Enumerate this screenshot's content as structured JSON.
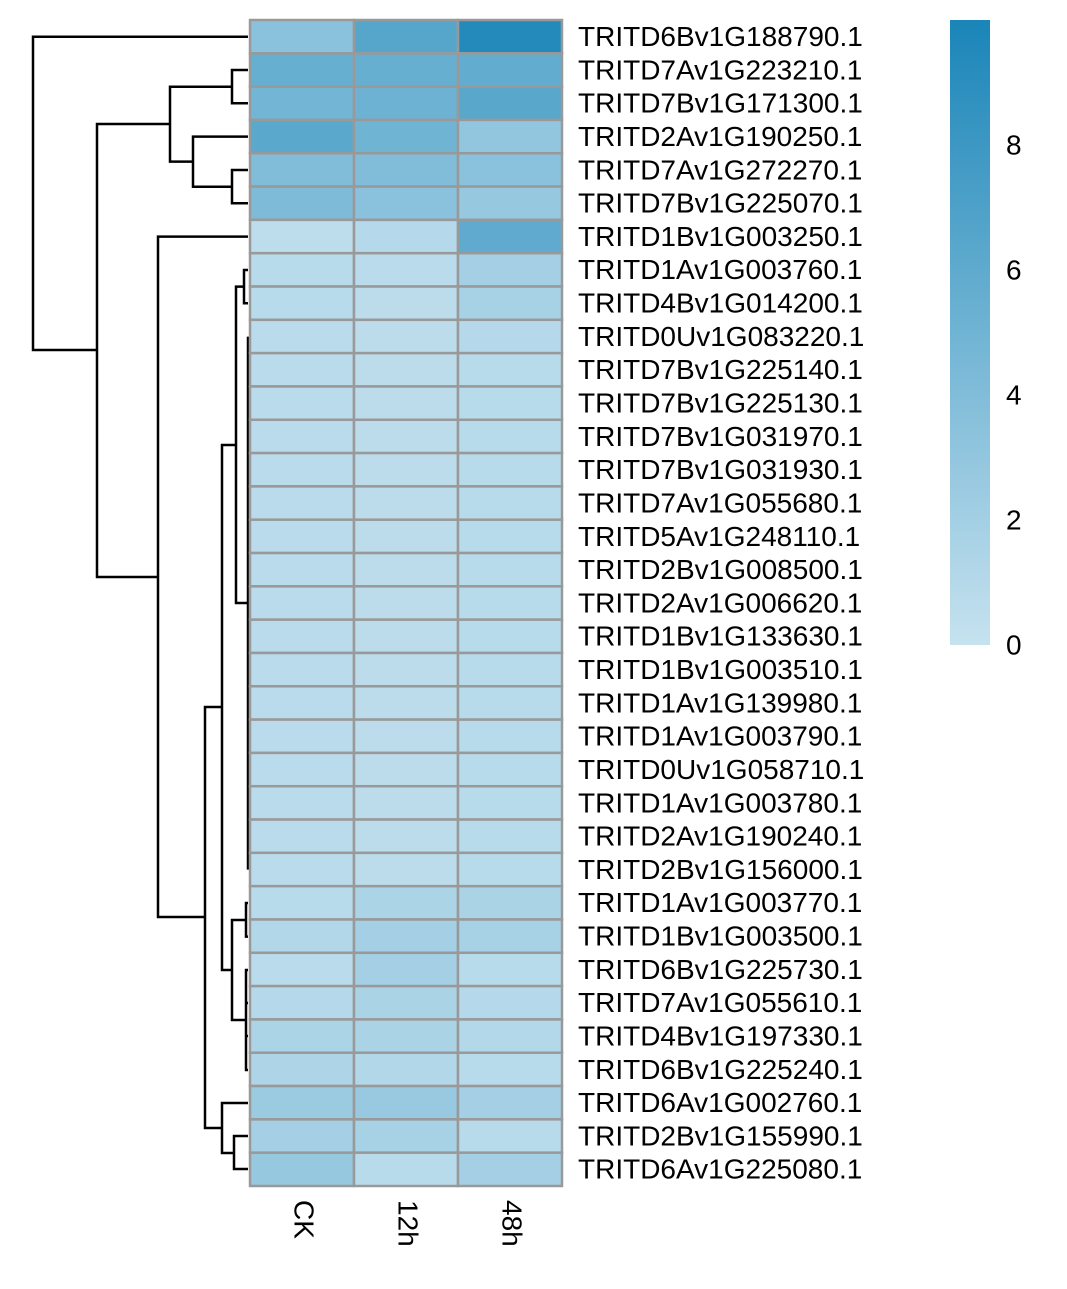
{
  "chart_data": {
    "type": "heatmap",
    "columns": [
      "CK",
      "12h",
      "48h"
    ],
    "rows": [
      "TRITD6Bv1G188790.1",
      "TRITD7Av1G223210.1",
      "TRITD7Bv1G171300.1",
      "TRITD2Av1G190250.1",
      "TRITD7Av1G272270.1",
      "TRITD7Bv1G225070.1",
      "TRITD1Bv1G003250.1",
      "TRITD1Av1G003760.1",
      "TRITD4Bv1G014200.1",
      "TRITD0Uv1G083220.1",
      "TRITD7Bv1G225140.1",
      "TRITD7Bv1G225130.1",
      "TRITD7Bv1G031970.1",
      "TRITD7Bv1G031930.1",
      "TRITD7Av1G055680.1",
      "TRITD5Av1G248110.1",
      "TRITD2Bv1G008500.1",
      "TRITD2Av1G006620.1",
      "TRITD1Bv1G133630.1",
      "TRITD1Bv1G003510.1",
      "TRITD1Av1G139980.1",
      "TRITD1Av1G003790.1",
      "TRITD0Uv1G058710.1",
      "TRITD1Av1G003780.1",
      "TRITD2Av1G190240.1",
      "TRITD2Bv1G156000.1",
      "TRITD1Av1G003770.1",
      "TRITD1Bv1G003500.1",
      "TRITD6Bv1G225730.1",
      "TRITD7Av1G055610.1",
      "TRITD4Bv1G197330.1",
      "TRITD6Bv1G225240.1",
      "TRITD6Av1G002760.1",
      "TRITD2Bv1G155990.1",
      "TRITD6Av1G225080.1"
    ],
    "values": [
      [
        3.5,
        6.5,
        9.5
      ],
      [
        5.5,
        5.5,
        5.8
      ],
      [
        4.8,
        5.2,
        6.3
      ],
      [
        6.2,
        5.0,
        3.0
      ],
      [
        4.0,
        4.0,
        3.5
      ],
      [
        4.2,
        3.5,
        2.8
      ],
      [
        0.5,
        1.0,
        6.0
      ],
      [
        0.8,
        0.7,
        2.0
      ],
      [
        0.8,
        0.6,
        1.8
      ],
      [
        0.7,
        0.6,
        1.0
      ],
      [
        0.7,
        0.6,
        0.8
      ],
      [
        0.7,
        0.6,
        0.8
      ],
      [
        0.7,
        0.6,
        0.8
      ],
      [
        0.7,
        0.6,
        0.8
      ],
      [
        0.7,
        0.6,
        0.8
      ],
      [
        0.7,
        0.6,
        0.8
      ],
      [
        0.7,
        0.6,
        0.8
      ],
      [
        0.7,
        0.6,
        0.8
      ],
      [
        0.7,
        0.6,
        0.8
      ],
      [
        0.7,
        0.6,
        0.8
      ],
      [
        0.7,
        0.6,
        0.8
      ],
      [
        0.7,
        0.6,
        0.8
      ],
      [
        0.7,
        0.6,
        0.8
      ],
      [
        0.7,
        0.6,
        0.8
      ],
      [
        0.7,
        0.6,
        0.8
      ],
      [
        0.7,
        0.6,
        0.8
      ],
      [
        0.8,
        1.5,
        1.6
      ],
      [
        1.2,
        2.0,
        1.8
      ],
      [
        0.7,
        2.0,
        0.8
      ],
      [
        1.0,
        1.6,
        1.0
      ],
      [
        1.5,
        1.6,
        1.1
      ],
      [
        1.4,
        1.2,
        0.8
      ],
      [
        2.5,
        2.7,
        2.0
      ],
      [
        2.0,
        1.8,
        0.8
      ],
      [
        2.8,
        0.8,
        2.0
      ]
    ],
    "color_low": "#c6e2ef",
    "color_high": "#1a85b8",
    "clim": [
      0,
      10
    ],
    "cticks": [
      0,
      2,
      4,
      6,
      8
    ]
  }
}
